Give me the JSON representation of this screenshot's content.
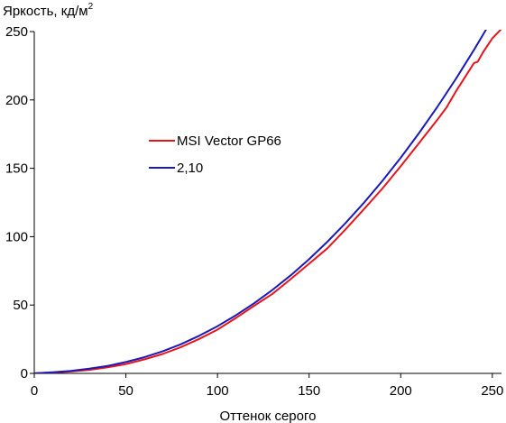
{
  "chart_data": {
    "type": "line",
    "ylabel": "Яркость, кд/м",
    "ylabel_sup": "2",
    "xlabel": "Оттенок серого",
    "xlim": [
      0,
      255
    ],
    "ylim": [
      0,
      250
    ],
    "x_ticks": [
      0,
      50,
      100,
      150,
      200,
      250
    ],
    "y_ticks": [
      0,
      50,
      100,
      150,
      200,
      250
    ],
    "grid": false,
    "legend_position": "center-left",
    "series": [
      {
        "name": "MSI Vector GP66",
        "color": "#e8141b",
        "x": [
          0,
          10,
          20,
          30,
          40,
          50,
          60,
          70,
          80,
          90,
          100,
          110,
          120,
          130,
          140,
          150,
          160,
          170,
          180,
          190,
          200,
          210,
          220,
          225,
          230,
          235,
          240,
          242,
          245,
          250,
          255
        ],
        "y": [
          0.2,
          0.6,
          1.4,
          2.6,
          4.4,
          6.8,
          10.2,
          14.2,
          19.2,
          25.2,
          32,
          40.5,
          49.5,
          58.2,
          69,
          80.2,
          91.5,
          105.5,
          120.2,
          135.2,
          151.5,
          168.5,
          185.5,
          194.5,
          206,
          216.5,
          227,
          228,
          235,
          245,
          252
        ]
      },
      {
        "name": "2,10",
        "color": "#1a1ab8",
        "x": [
          0,
          10,
          20,
          30,
          40,
          50,
          60,
          70,
          80,
          90,
          100,
          110,
          120,
          130,
          140,
          150,
          160,
          170,
          180,
          190,
          200,
          210,
          220,
          230,
          240,
          250,
          255
        ],
        "y": [
          0,
          0.8,
          1.8,
          3.4,
          5.5,
          8.3,
          11.8,
          16.1,
          21.3,
          27.5,
          34.5,
          42.5,
          51.3,
          61.1,
          71.8,
          83.5,
          96.3,
          110.1,
          124.9,
          140.8,
          157.7,
          175.8,
          194.9,
          215.2,
          236.6,
          259.1,
          270.8
        ]
      }
    ]
  }
}
